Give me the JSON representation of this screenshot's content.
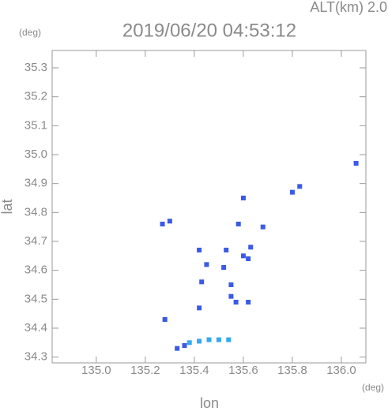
{
  "chart_data": {
    "type": "scatter",
    "title": "2019/06/20 04:53:12",
    "subtitle": "ALT(km) 2.0",
    "y_unit": "(deg)",
    "x_unit": "(deg)",
    "y_label": "lat",
    "x_label": "lon",
    "xlim": [
      134.82,
      136.1
    ],
    "ylim": [
      34.28,
      35.36
    ],
    "xticks": [
      {
        "value": 135,
        "label": "135.0"
      },
      135.2,
      135.4,
      135.6,
      135.8,
      {
        "value": 136,
        "label": "136.0"
      }
    ],
    "yticks": [
      34.3,
      34.4,
      34.5,
      34.6,
      34.7,
      34.8,
      34.9,
      {
        "value": 35,
        "label": "35.0"
      },
      35.1,
      35.2,
      35.3
    ],
    "series": [
      {
        "color": "#3a5ae8",
        "x": [
          135.27,
          135.3,
          135.28,
          135.33,
          135.36,
          135.42,
          135.45,
          135.43,
          135.42,
          135.53,
          135.52,
          135.55,
          135.55,
          135.57,
          135.6,
          135.63,
          135.62,
          135.58,
          135.6,
          135.62,
          135.8,
          135.83,
          136.06,
          135.68
        ],
        "values": [
          34.76,
          34.77,
          34.43,
          34.33,
          34.34,
          34.67,
          34.62,
          34.56,
          34.47,
          34.67,
          34.61,
          34.55,
          34.51,
          34.49,
          34.65,
          34.68,
          34.64,
          34.76,
          34.85,
          34.49,
          34.87,
          34.89,
          34.97,
          34.75
        ]
      },
      {
        "color": "#35a8f0",
        "x": [
          135.38,
          135.42,
          135.46,
          135.5,
          135.54
        ],
        "values": [
          34.35,
          34.355,
          34.36,
          34.36,
          34.36
        ]
      }
    ]
  }
}
